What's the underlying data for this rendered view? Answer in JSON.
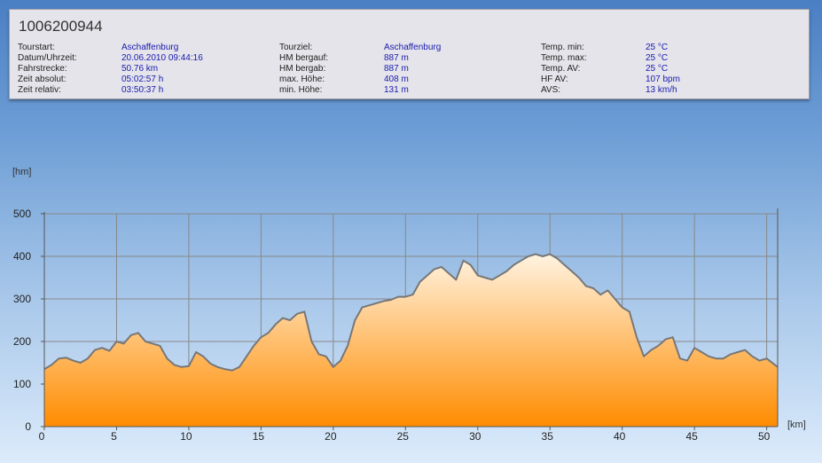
{
  "header": {
    "title": "1006200944",
    "col1": [
      {
        "label": "Tourstart:",
        "value": "Aschaffenburg"
      },
      {
        "label": "Datum/Uhrzeit:",
        "value": "20.06.2010 09:44:16"
      },
      {
        "label": "Fahrstrecke:",
        "value": "50.76 km"
      },
      {
        "label": "Zeit absolut:",
        "value": "05:02:57 h"
      },
      {
        "label": "Zeit relativ:",
        "value": "03:50:37 h"
      }
    ],
    "col2": [
      {
        "label": "Tourziel:",
        "value": "Aschaffenburg"
      },
      {
        "label": "HM bergauf:",
        "value": "887 m"
      },
      {
        "label": "HM bergab:",
        "value": "887 m"
      },
      {
        "label": "max. Höhe:",
        "value": "408 m"
      },
      {
        "label": "min. Höhe:",
        "value": "131 m"
      }
    ],
    "col3": [
      {
        "label": "Temp. min:",
        "value": "25 °C"
      },
      {
        "label": "Temp. max:",
        "value": "25 °C"
      },
      {
        "label": "Temp. AV:",
        "value": "25 °C"
      },
      {
        "label": "HF AV:",
        "value": "107 bpm"
      },
      {
        "label": "AVS:",
        "value": "13 km/h"
      }
    ]
  },
  "chart_data": {
    "type": "area",
    "ylabel": "[hm]",
    "xlabel": "[km]",
    "xlim": [
      0,
      50.76
    ],
    "ylim": [
      0,
      500
    ],
    "xticks": [
      0,
      5,
      10,
      15,
      20,
      25,
      30,
      35,
      40,
      45,
      50
    ],
    "yticks": [
      0,
      100,
      200,
      300,
      400,
      500
    ],
    "grid": true,
    "colors": {
      "fill_top": "#fff3e0",
      "fill_bottom": "#ff8c00",
      "line": "#777777",
      "grid": "#888888"
    },
    "x": [
      0,
      0.5,
      1,
      1.5,
      2,
      2.5,
      3,
      3.5,
      4,
      4.5,
      5,
      5.5,
      6,
      6.5,
      7,
      7.5,
      8,
      8.5,
      9,
      9.5,
      10,
      10.5,
      11,
      11.5,
      12,
      12.5,
      13,
      13.5,
      14,
      14.5,
      15,
      15.5,
      16,
      16.5,
      17,
      17.5,
      18,
      18.5,
      19,
      19.5,
      20,
      20.5,
      21,
      21.5,
      22,
      22.5,
      23,
      23.5,
      24,
      24.5,
      25,
      25.5,
      26,
      26.5,
      27,
      27.5,
      28,
      28.5,
      29,
      29.5,
      30,
      30.5,
      31,
      31.5,
      32,
      32.5,
      33,
      33.5,
      34,
      34.5,
      35,
      35.5,
      36,
      36.5,
      37,
      37.5,
      38,
      38.5,
      39,
      39.5,
      40,
      40.5,
      41,
      41.5,
      42,
      42.5,
      43,
      43.5,
      44,
      44.5,
      45,
      45.5,
      46,
      46.5,
      47,
      47.5,
      48,
      48.5,
      49,
      49.5,
      50,
      50.76
    ],
    "y": [
      135,
      145,
      160,
      162,
      155,
      150,
      160,
      180,
      185,
      178,
      200,
      195,
      215,
      220,
      200,
      195,
      190,
      160,
      145,
      140,
      142,
      175,
      165,
      148,
      140,
      135,
      132,
      140,
      165,
      190,
      210,
      220,
      240,
      255,
      250,
      265,
      270,
      200,
      170,
      165,
      140,
      155,
      190,
      250,
      280,
      285,
      290,
      295,
      298,
      305,
      305,
      310,
      340,
      355,
      370,
      375,
      360,
      345,
      390,
      380,
      355,
      350,
      345,
      355,
      365,
      380,
      390,
      400,
      405,
      400,
      405,
      395,
      380,
      365,
      350,
      330,
      325,
      310,
      320,
      300,
      280,
      270,
      210,
      165,
      180,
      190,
      205,
      210,
      160,
      155,
      185,
      175,
      165,
      160,
      160,
      170,
      175,
      180,
      165,
      155,
      160,
      140
    ]
  }
}
